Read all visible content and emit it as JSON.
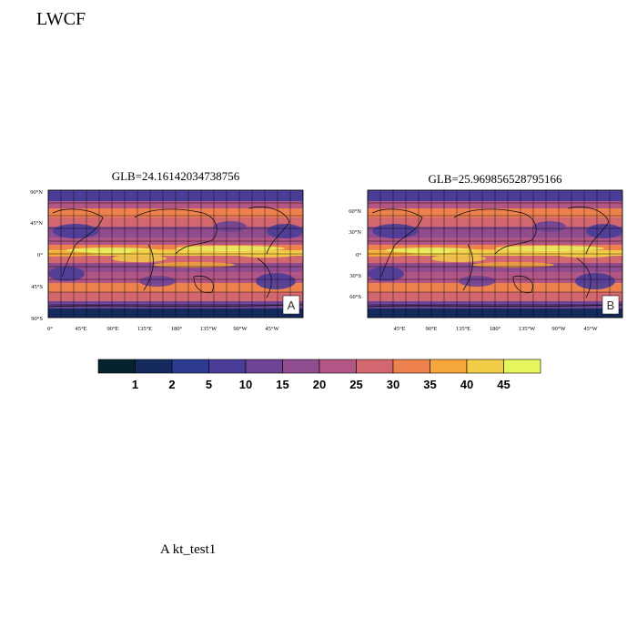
{
  "figure": {
    "title": "LWCF",
    "caption": "A  kt_test1"
  },
  "panels": [
    {
      "id": "A",
      "title": "GLB=24.16142034738756",
      "badge": "A",
      "lat_labels": [
        "90°N",
        "45°N",
        "0°",
        "45°S",
        "90°S"
      ],
      "lon_labels": [
        "0°",
        "45°E",
        "90°E",
        "135°E",
        "180°",
        "135°W",
        "90°W",
        "45°W"
      ]
    },
    {
      "id": "B",
      "title": "GLB=25.969856528795166",
      "badge": "B",
      "lat_labels": [
        "60°N",
        "30°N",
        "0°",
        "30°S",
        "60°S"
      ],
      "lon_labels": [
        "45°E",
        "90°E",
        "135°E",
        "180°",
        "135°W",
        "90°W",
        "45°W"
      ]
    }
  ],
  "colorbar": {
    "levels": [
      "1",
      "2",
      "5",
      "10",
      "15",
      "20",
      "25",
      "30",
      "35",
      "40",
      "45"
    ],
    "colors": [
      "#06222e",
      "#142a5c",
      "#2c3a91",
      "#4a3d98",
      "#6e4496",
      "#8f4c8f",
      "#b25686",
      "#d3676f",
      "#ee824f",
      "#f6a73b",
      "#f3cd48",
      "#e7f55f"
    ]
  },
  "chart_data": {
    "type": "heatmap",
    "title": "LWCF",
    "panel_titles": [
      "GLB=24.16142034738756",
      "GLB=25.969856528795166"
    ],
    "global_means": [
      24.16142034738756,
      25.969856528795166
    ],
    "contour_levels": [
      1,
      2,
      5,
      10,
      15,
      20,
      25,
      30,
      35,
      40,
      45
    ],
    "panel_labels": [
      "A",
      "B"
    ]
  }
}
